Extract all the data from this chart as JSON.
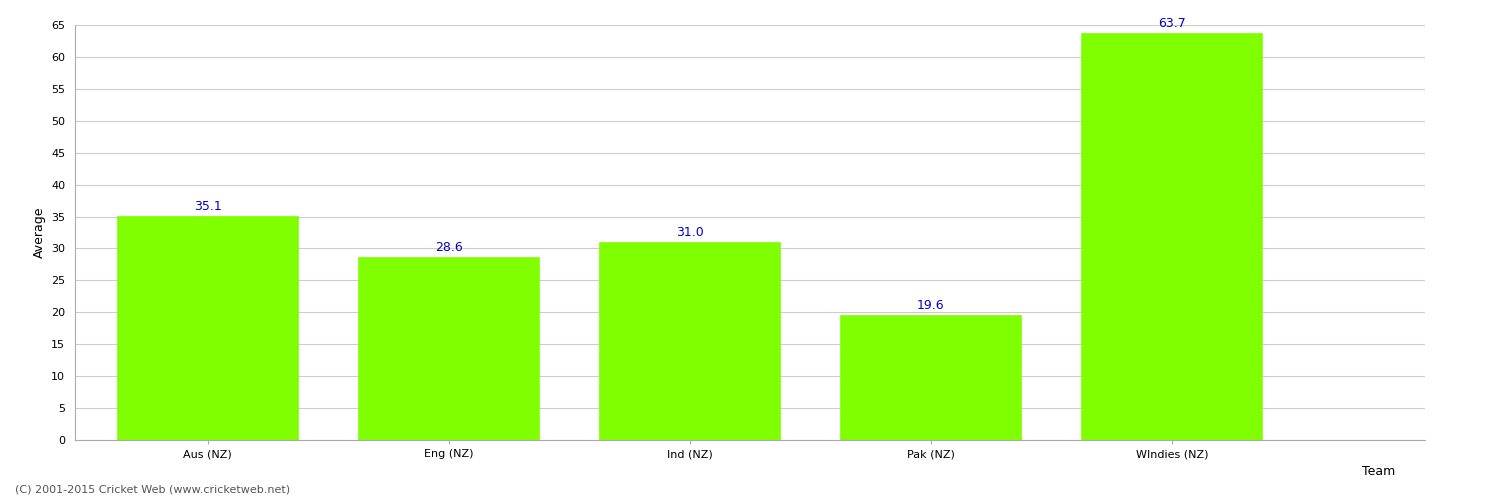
{
  "categories": [
    "Aus (NZ)",
    "Eng (NZ)",
    "Ind (NZ)",
    "Pak (NZ)",
    "WIndies (NZ)"
  ],
  "values": [
    35.1,
    28.6,
    31.0,
    19.6,
    63.7
  ],
  "bar_color": "#7fff00",
  "bar_edge_color": "#7fff00",
  "label_color": "#0000cc",
  "xlabel": "Team",
  "ylabel": "Average",
  "ylim": [
    0,
    65
  ],
  "yticks": [
    0,
    5,
    10,
    15,
    20,
    25,
    30,
    35,
    40,
    45,
    50,
    55,
    60,
    65
  ],
  "label_fontsize": 9,
  "axis_label_fontsize": 9,
  "tick_fontsize": 8,
  "footnote": "(C) 2001-2015 Cricket Web (www.cricketweb.net)",
  "footnote_fontsize": 8,
  "background_color": "#ffffff",
  "grid_color": "#cccccc"
}
